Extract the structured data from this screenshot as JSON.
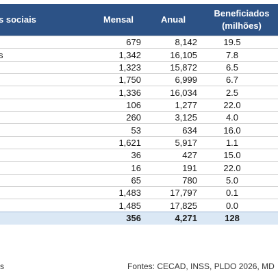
{
  "table": {
    "headers": {
      "name": "s sociais",
      "mensal": "Mensal",
      "anual": "Anual",
      "beneficiados": "Beneficiados",
      "beneficiados_unit": "(milhões)"
    },
    "rows": [
      {
        "name": "",
        "mensal": "679",
        "anual": "8,142",
        "benef": "19.5"
      },
      {
        "name": "s",
        "mensal": "1,342",
        "anual": "16,105",
        "benef": "7.8"
      },
      {
        "name": "",
        "mensal": "1,323",
        "anual": "15,872",
        "benef": "6.5"
      },
      {
        "name": "",
        "mensal": "1,750",
        "anual": "6,999",
        "benef": "6.7"
      },
      {
        "name": "",
        "mensal": "1,336",
        "anual": "16,034",
        "benef": "2.5"
      },
      {
        "name": "",
        "mensal": "106",
        "anual": "1,277",
        "benef": "22.0"
      },
      {
        "name": "",
        "mensal": "260",
        "anual": "3,125",
        "benef": "4.0"
      },
      {
        "name": "",
        "mensal": "53",
        "anual": "634",
        "benef": "16.0"
      },
      {
        "name": "",
        "mensal": "1,621",
        "anual": "5,917",
        "benef": "1.1"
      },
      {
        "name": "",
        "mensal": "36",
        "anual": "427",
        "benef": "15.0"
      },
      {
        "name": "",
        "mensal": "16",
        "anual": "191",
        "benef": "22.0"
      },
      {
        "name": "",
        "mensal": "65",
        "anual": "780",
        "benef": "5.0"
      },
      {
        "name": "",
        "mensal": "1,483",
        "anual": "17,797",
        "benef": "0.1"
      },
      {
        "name": "",
        "mensal": "1,485",
        "anual": "17,825",
        "benef": "0.0"
      }
    ],
    "total": {
      "name": "",
      "mensal": "356",
      "anual": "4,271",
      "benef": "128"
    }
  },
  "footer": {
    "left_fragment": "s",
    "source": "Fontes: CECAD, INSS, PLDO 2026, MD"
  },
  "colors": {
    "header_bg": "#2c5286",
    "total_bg": "#dbe8f5"
  }
}
